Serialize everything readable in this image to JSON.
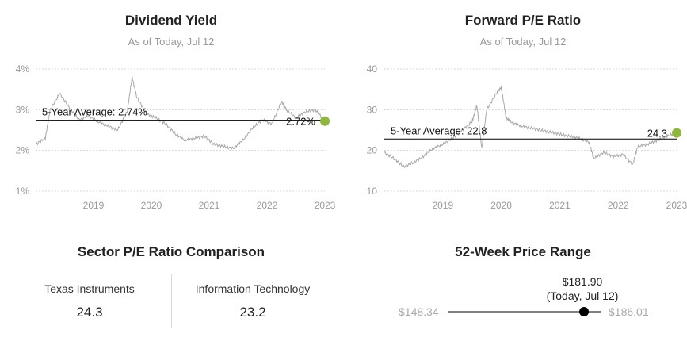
{
  "charts": [
    {
      "title": "Dividend Yield",
      "subtitle": "As of Today, Jul 12",
      "avg_label": "5-Year Average: 2.74%",
      "current_label": "2.72%",
      "y_ticks": [
        "4%",
        "3%",
        "2%",
        "1%"
      ],
      "x_ticks": [
        "2019",
        "2020",
        "2021",
        "2022",
        "2023"
      ]
    },
    {
      "title": "Forward P/E Ratio",
      "subtitle": "As of Today, Jul 12",
      "avg_label": "5-Year Average: 22.8",
      "current_label": "24.3",
      "y_ticks": [
        "40",
        "30",
        "20",
        "10"
      ],
      "x_ticks": [
        "2019",
        "2020",
        "2021",
        "2022",
        "2023"
      ]
    }
  ],
  "chart_data": [
    {
      "type": "line",
      "title": "Dividend Yield",
      "subtitle": "As of Today, Jul 12",
      "ylim": [
        1,
        4
      ],
      "y_unit": "%",
      "x_range": [
        "2018-07",
        "2023-07"
      ],
      "reference_line": {
        "label": "5-Year Average: 2.74%",
        "value": 2.74
      },
      "current": {
        "label": "2.72%",
        "value": 2.72,
        "marker_color": "#8db83a"
      },
      "series": [
        {
          "x": [
            "2018-07",
            "2018-09",
            "2018-10",
            "2018-12",
            "2019-02",
            "2019-04",
            "2019-06",
            "2019-08",
            "2019-10",
            "2019-12",
            "2020-02",
            "2020-03",
            "2020-04",
            "2020-06",
            "2020-08",
            "2020-10",
            "2020-12",
            "2021-02",
            "2021-04",
            "2021-06",
            "2021-08",
            "2021-10",
            "2021-12",
            "2022-02",
            "2022-04",
            "2022-06",
            "2022-08",
            "2022-10",
            "2022-11",
            "2023-01",
            "2023-03",
            "2023-05",
            "2023-07"
          ],
          "values": [
            2.15,
            2.3,
            3.0,
            3.4,
            3.05,
            2.75,
            2.85,
            2.7,
            2.6,
            2.5,
            2.95,
            3.8,
            3.3,
            2.9,
            2.8,
            2.65,
            2.4,
            2.25,
            2.3,
            2.35,
            2.15,
            2.1,
            2.05,
            2.25,
            2.55,
            2.75,
            2.65,
            3.2,
            3.0,
            2.8,
            2.95,
            3.0,
            2.72
          ]
        }
      ],
      "grid": "horizontal dotted"
    },
    {
      "type": "line",
      "title": "Forward P/E Ratio",
      "subtitle": "As of Today, Jul 12",
      "ylim": [
        10,
        40
      ],
      "x_range": [
        "2018-07",
        "2023-07"
      ],
      "reference_line": {
        "label": "5-Year Average: 22.8",
        "value": 22.8
      },
      "current": {
        "label": "24.3",
        "value": 24.3,
        "marker_color": "#8db83a"
      },
      "series": [
        {
          "x": [
            "2018-07",
            "2018-09",
            "2018-11",
            "2019-01",
            "2019-03",
            "2019-05",
            "2019-07",
            "2019-09",
            "2019-11",
            "2020-01",
            "2020-02",
            "2020-03",
            "2020-04",
            "2020-06",
            "2020-07",
            "2020-08",
            "2020-09",
            "2020-11",
            "2021-01",
            "2021-03",
            "2021-05",
            "2021-07",
            "2021-09",
            "2021-11",
            "2022-01",
            "2022-02",
            "2022-04",
            "2022-06",
            "2022-08",
            "2022-10",
            "2022-11",
            "2023-01",
            "2023-03",
            "2023-05",
            "2023-07"
          ],
          "values": [
            19.5,
            18.0,
            16.0,
            17.0,
            18.5,
            20.5,
            21.5,
            23.0,
            25.0,
            27.0,
            31.0,
            20.5,
            30.0,
            34.0,
            35.5,
            28.0,
            27.0,
            26.0,
            25.5,
            25.0,
            24.5,
            24.0,
            23.5,
            23.0,
            22.0,
            18.0,
            19.5,
            18.5,
            19.0,
            16.5,
            21.0,
            21.5,
            22.5,
            23.5,
            24.3
          ]
        }
      ],
      "grid": "horizontal dotted"
    }
  ],
  "comparison": {
    "title": "Sector P/E Ratio Comparison",
    "left_label": "Texas Instruments",
    "left_value": "24.3",
    "right_label": "Information Technology",
    "right_value": "23.2"
  },
  "range": {
    "title": "52-Week Price Range",
    "low": "$148.34",
    "high": "$186.01",
    "current": "$181.90",
    "current_sub": "(Today, Jul 12)",
    "low_value": 148.34,
    "high_value": 186.01,
    "current_value": 181.9
  }
}
